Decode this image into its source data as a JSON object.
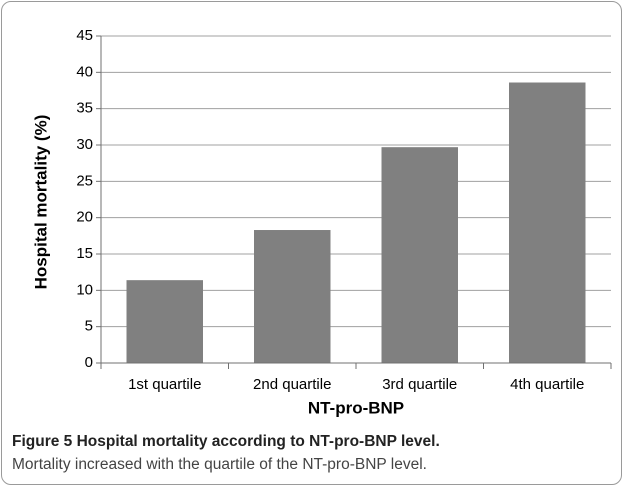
{
  "chart_data": {
    "type": "bar",
    "x_label": "NT-pro-BNP",
    "y_label": "Hospital mortality (%)",
    "categories": [
      "1st quartile",
      "2nd quartile",
      "3rd quartile",
      "4th quartile"
    ],
    "values": [
      11.4,
      18.3,
      29.7,
      38.6
    ],
    "color": "#808080",
    "ylim": [
      0,
      45
    ],
    "yticks": [
      0,
      5,
      10,
      15,
      20,
      25,
      30,
      35,
      40,
      45
    ],
    "grid": true
  },
  "caption": {
    "title": "Figure 5 Hospital mortality according to NT-pro-BNP level.",
    "text": "Mortality increased with the quartile of the NT-pro-BNP level."
  }
}
